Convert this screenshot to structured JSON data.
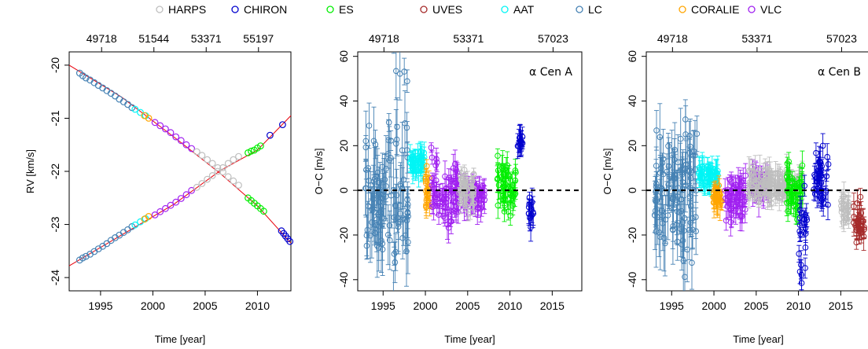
{
  "legend": [
    {
      "name": "HARPS",
      "color": "#bebebe"
    },
    {
      "name": "CHIRON",
      "color": "#0000cd"
    },
    {
      "name": "ES",
      "color": "#00ee00"
    },
    {
      "name": "UVES",
      "color": "#a52a2a"
    },
    {
      "name": "AAT",
      "color": "#00f5f5"
    },
    {
      "name": "LC",
      "color": "#4682b4"
    },
    {
      "name": "CORALIE",
      "color": "#ffa500"
    },
    {
      "name": "VLC",
      "color": "#a020f0"
    }
  ],
  "chart_data": [
    {
      "type": "scatter",
      "id": "rv",
      "xlabel": "Time [year]",
      "ylabel": "RV [km/s]",
      "xlim": [
        1992.0,
        2013.2
      ],
      "ylim": [
        -24.25,
        -19.75
      ],
      "xticks": [
        1995,
        2000,
        2005,
        2010
      ],
      "yticks": [
        -24,
        -23,
        -22,
        -21,
        -20
      ],
      "top_ticks": [
        {
          "year": 1995.1,
          "label": "49718"
        },
        {
          "year": 2000.1,
          "label": "51544"
        },
        {
          "year": 2005.1,
          "label": "53371"
        },
        {
          "year": 2010.1,
          "label": "55197"
        }
      ],
      "model_lines": [
        {
          "name": "A",
          "points": [
            [
              1992.0,
              -20.0
            ],
            [
              1997.0,
              -20.6
            ],
            [
              2002.0,
              -21.35
            ],
            [
              2006.5,
              -22.05
            ],
            [
              2010.0,
              -22.65
            ],
            [
              2013.2,
              -23.35
            ]
          ]
        },
        {
          "name": "B",
          "points": [
            [
              1992.0,
              -23.78
            ],
            [
              1997.0,
              -23.2
            ],
            [
              2002.0,
              -22.62
            ],
            [
              2006.5,
              -21.98
            ],
            [
              2010.0,
              -21.6
            ],
            [
              2013.2,
              -20.95
            ]
          ]
        }
      ],
      "series": [
        {
          "name": "LC",
          "star": "A",
          "x": [
            1993.0,
            1993.3,
            1993.6,
            1994.0,
            1994.4,
            1994.8,
            1995.2,
            1995.6,
            1996.0,
            1996.4,
            1996.8,
            1997.2,
            1997.6,
            1998.0
          ],
          "y": [
            -20.15,
            -20.2,
            -20.24,
            -20.28,
            -20.33,
            -20.38,
            -20.43,
            -20.48,
            -20.53,
            -20.58,
            -20.64,
            -20.69,
            -20.74,
            -20.8
          ]
        },
        {
          "name": "LC",
          "star": "B",
          "x": [
            1993.0,
            1993.3,
            1993.6,
            1994.0,
            1994.4,
            1994.8,
            1995.2,
            1995.6,
            1996.0,
            1996.4,
            1996.8,
            1997.2,
            1997.6,
            1998.0
          ],
          "y": [
            -23.67,
            -23.63,
            -23.6,
            -23.56,
            -23.51,
            -23.46,
            -23.41,
            -23.36,
            -23.3,
            -23.25,
            -23.2,
            -23.15,
            -23.1,
            -23.04
          ]
        },
        {
          "name": "AAT",
          "star": "A",
          "x": [
            1998.3,
            1998.8,
            1999.3
          ],
          "y": [
            -20.83,
            -20.89,
            -20.95
          ]
        },
        {
          "name": "AAT",
          "star": "B",
          "x": [
            1998.3,
            1998.8,
            1999.3
          ],
          "y": [
            -23.01,
            -22.95,
            -22.89
          ]
        },
        {
          "name": "CORALIE",
          "star": "A",
          "x": [
            1999.2,
            1999.6
          ],
          "y": [
            -20.95,
            -21.0
          ]
        },
        {
          "name": "CORALIE",
          "star": "B",
          "x": [
            1999.2,
            1999.6
          ],
          "y": [
            -22.9,
            -22.85
          ]
        },
        {
          "name": "VLC",
          "star": "A",
          "x": [
            2000.2,
            2000.7,
            2001.2,
            2001.7,
            2002.2,
            2002.7,
            2003.2,
            2003.7
          ],
          "y": [
            -21.08,
            -21.14,
            -21.2,
            -21.27,
            -21.35,
            -21.42,
            -21.5,
            -21.57
          ]
        },
        {
          "name": "VLC",
          "star": "B",
          "x": [
            2000.2,
            2000.7,
            2001.2,
            2001.7,
            2002.2,
            2002.7,
            2003.2,
            2003.7
          ],
          "y": [
            -22.82,
            -22.76,
            -22.7,
            -22.64,
            -22.58,
            -22.51,
            -22.44,
            -22.36
          ]
        },
        {
          "name": "HARPS",
          "star": "A",
          "x": [
            2004.2,
            2004.7,
            2005.2,
            2005.7,
            2006.2,
            2006.7,
            2007.2,
            2007.7,
            2008.2
          ],
          "y": [
            -21.63,
            -21.7,
            -21.78,
            -21.85,
            -21.93,
            -22.01,
            -22.1,
            -22.18,
            -22.26
          ]
        },
        {
          "name": "HARPS",
          "star": "B",
          "x": [
            2004.2,
            2004.7,
            2005.2,
            2005.7,
            2006.2,
            2006.7,
            2007.2,
            2007.7,
            2008.2
          ],
          "y": [
            -22.3,
            -22.23,
            -22.15,
            -22.08,
            -22.0,
            -21.93,
            -21.85,
            -21.78,
            -21.72
          ]
        },
        {
          "name": "ES",
          "star": "A",
          "x": [
            2009.1,
            2009.4,
            2009.7,
            2010.0,
            2010.3,
            2010.6
          ],
          "y": [
            -22.5,
            -22.55,
            -22.6,
            -22.65,
            -22.7,
            -22.75
          ]
        },
        {
          "name": "ES",
          "star": "B",
          "x": [
            2009.1,
            2009.4,
            2009.7,
            2010.0,
            2010.3
          ],
          "y": [
            -21.65,
            -21.62,
            -21.6,
            -21.56,
            -21.52
          ]
        },
        {
          "name": "CHIRON",
          "star": "A",
          "x": [
            2012.3,
            2012.5,
            2012.7,
            2012.9,
            2013.1
          ],
          "y": [
            -23.12,
            -23.17,
            -23.22,
            -23.27,
            -23.32
          ]
        },
        {
          "name": "CHIRON",
          "star": "B",
          "x": [
            2011.2,
            2012.4
          ],
          "y": [
            -21.32,
            -21.12
          ]
        }
      ]
    },
    {
      "type": "scatter",
      "id": "oc-a",
      "xlabel": "Time [year]",
      "ylabel": "O−C [m/s]",
      "annotation": "α Cen A",
      "xlim": [
        1992.0,
        2018.5
      ],
      "ylim": [
        -45,
        62
      ],
      "xticks": [
        1995,
        2000,
        2005,
        2010,
        2015
      ],
      "yticks": [
        -40,
        -20,
        0,
        20,
        40,
        60
      ],
      "top_ticks": [
        {
          "year": 1995.1,
          "label": "49718"
        },
        {
          "year": 2005.1,
          "label": "53371"
        },
        {
          "year": 2015.1,
          "label": "57023"
        }
      ],
      "series": [
        {
          "name": "LC",
          "ranges": [
            [
              1992.9,
              1994.0,
              0,
              25
            ],
            [
              1994.0,
              1995.5,
              -5,
              22
            ],
            [
              1995.5,
              1998.0,
              5,
              45
            ]
          ]
        },
        {
          "name": "AAT",
          "ranges": [
            [
              1998.2,
              2000.0,
              12,
              4
            ]
          ]
        },
        {
          "name": "CORALIE",
          "ranges": [
            [
              1999.8,
              2000.6,
              0,
              10
            ]
          ]
        },
        {
          "name": "VLC",
          "ranges": [
            [
              2000.6,
              2001.6,
              0,
              16
            ],
            [
              2001.6,
              2004.0,
              -3,
              10
            ],
            [
              2004.5,
              2007.0,
              -2,
              5
            ]
          ]
        },
        {
          "name": "HARPS",
          "ranges": [
            [
              2004.0,
              2005.8,
              0,
              8
            ]
          ]
        },
        {
          "name": "ES",
          "ranges": [
            [
              2008.5,
              2010.7,
              1,
              9
            ]
          ]
        },
        {
          "name": "CHIRON",
          "ranges": [
            [
              2010.9,
              2011.5,
              22,
              2
            ],
            [
              2012.2,
              2012.8,
              -9,
              6
            ]
          ]
        }
      ]
    },
    {
      "type": "scatter",
      "id": "oc-b",
      "xlabel": "Time [year]",
      "ylabel": "O−C [m/s]",
      "annotation": "α Cen B",
      "xlim": [
        1992.0,
        2018.5
      ],
      "ylim": [
        -45,
        62
      ],
      "xticks": [
        1995,
        2000,
        2005,
        2010,
        2015
      ],
      "yticks": [
        -40,
        -20,
        0,
        20,
        40,
        60
      ],
      "top_ticks": [
        {
          "year": 1995.1,
          "label": "49718"
        },
        {
          "year": 2005.1,
          "label": "53371"
        },
        {
          "year": 2015.1,
          "label": "57023"
        }
      ],
      "series": [
        {
          "name": "LC",
          "ranges": [
            [
              1992.9,
              1995.5,
              0,
              20
            ],
            [
              1995.5,
              1998.0,
              0,
              30
            ]
          ]
        },
        {
          "name": "AAT",
          "ranges": [
            [
              1998.2,
              2000.5,
              6,
              4
            ]
          ]
        },
        {
          "name": "CORALIE",
          "ranges": [
            [
              1999.8,
              2001.0,
              -3,
              4
            ]
          ]
        },
        {
          "name": "VLC",
          "ranges": [
            [
              2001.2,
              2003.8,
              -3,
              8
            ],
            [
              2004.5,
              2006.5,
              2,
              5
            ]
          ]
        },
        {
          "name": "HARPS",
          "ranges": [
            [
              2004.0,
              2010.5,
              2,
              6
            ],
            [
              2015.0,
              2016.0,
              -8,
              5
            ]
          ]
        },
        {
          "name": "ES",
          "ranges": [
            [
              2008.5,
              2010.5,
              0,
              10
            ]
          ]
        },
        {
          "name": "CHIRON",
          "ranges": [
            [
              2010.0,
              2011.0,
              -20,
              15
            ],
            [
              2011.8,
              2013.6,
              5,
              10
            ]
          ]
        },
        {
          "name": "UVES",
          "ranges": [
            [
              2016.5,
              2017.8,
              -15,
              8
            ]
          ]
        }
      ]
    }
  ]
}
